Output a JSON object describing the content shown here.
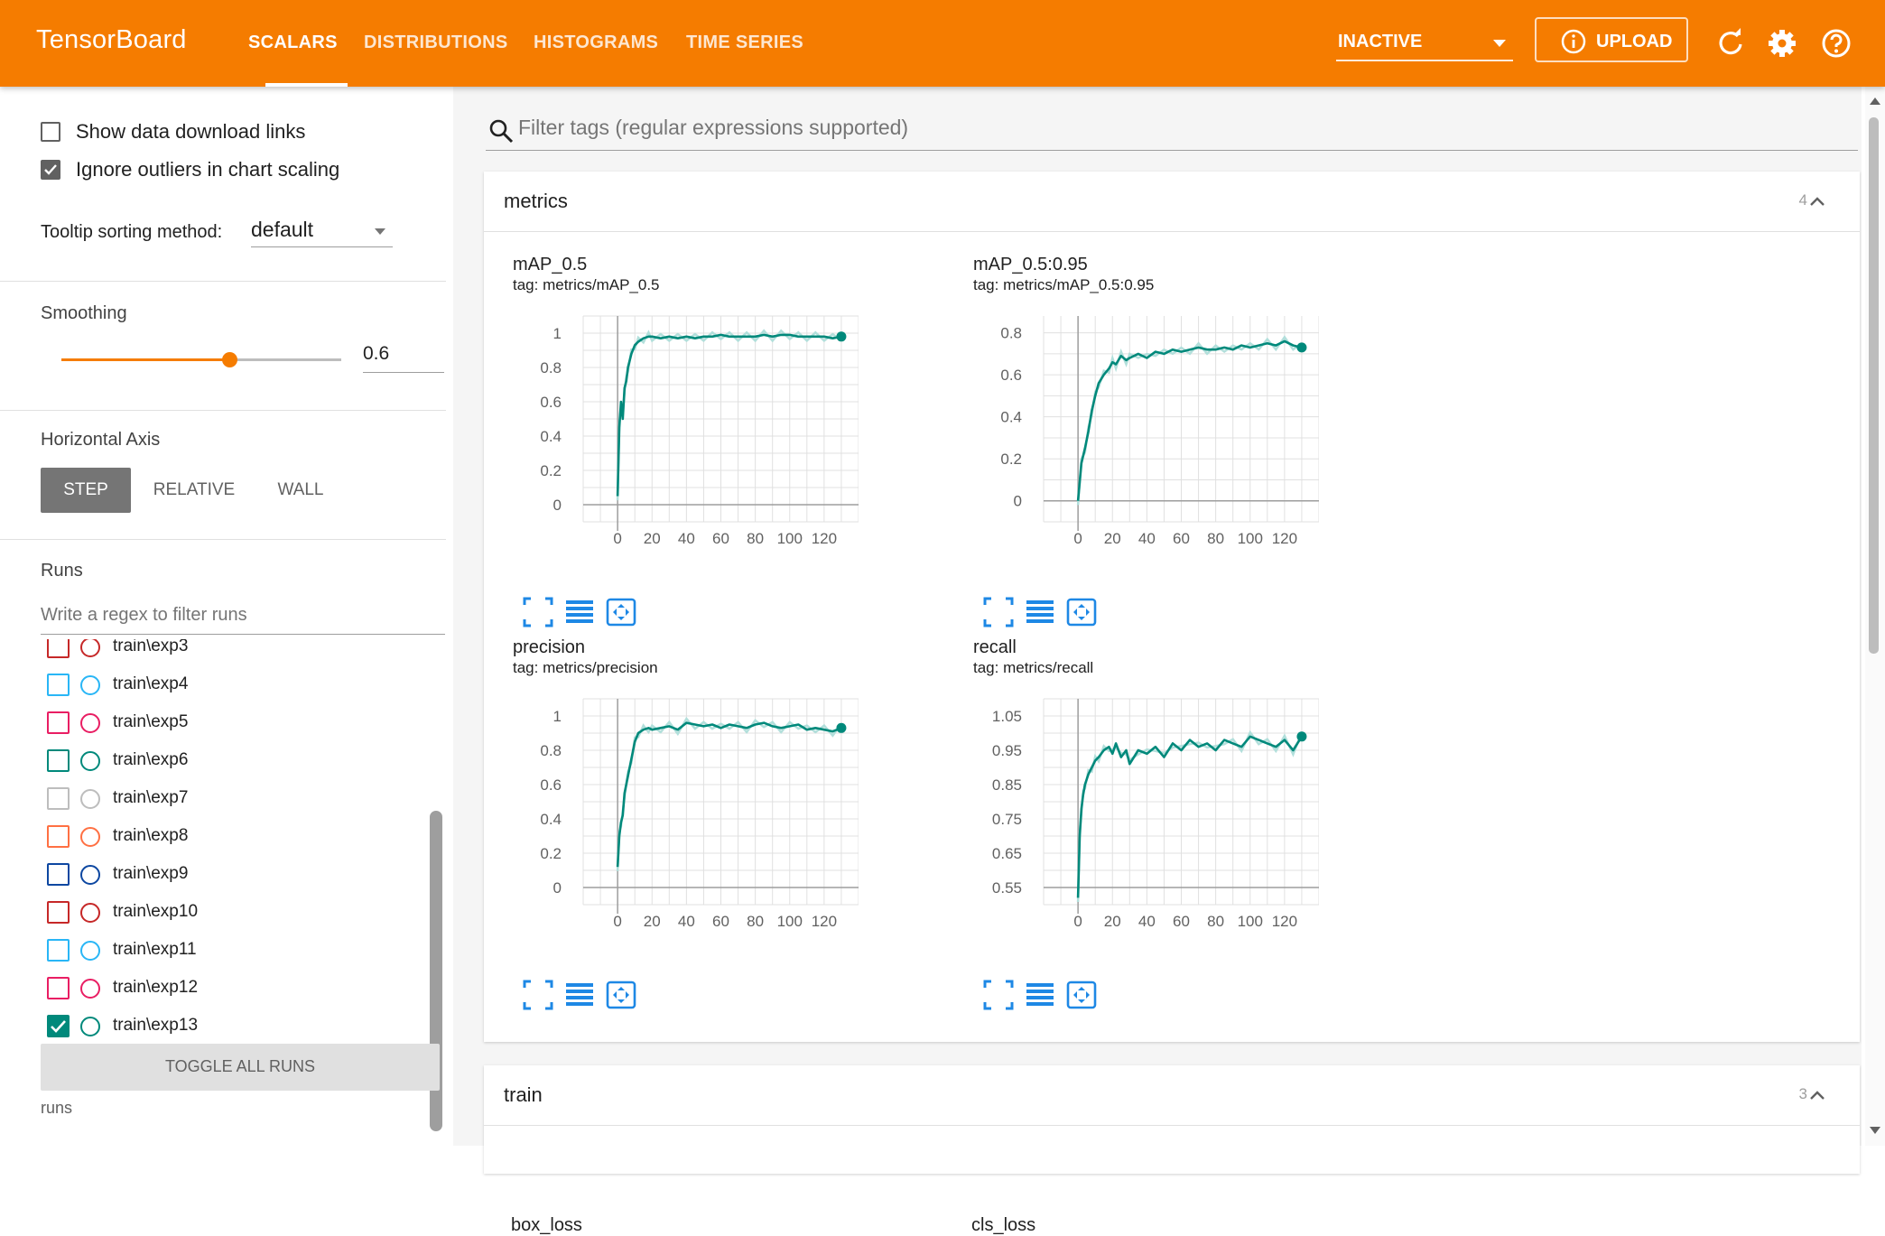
{
  "app": {
    "title": "TensorBoard"
  },
  "nav": {
    "tabs": [
      {
        "label": "SCALARS",
        "active": true
      },
      {
        "label": "DISTRIBUTIONS",
        "active": false
      },
      {
        "label": "HISTOGRAMS",
        "active": false
      },
      {
        "label": "TIME SERIES",
        "active": false
      }
    ],
    "status_select": "INACTIVE",
    "upload_label": "UPLOAD",
    "icons": [
      "refresh-icon",
      "settings-icon",
      "help-icon"
    ]
  },
  "sidebar": {
    "show_download_links": {
      "label": "Show data download links",
      "checked": false
    },
    "ignore_outliers": {
      "label": "Ignore outliers in chart scaling",
      "checked": true
    },
    "tooltip_sorting": {
      "label": "Tooltip sorting method:",
      "value": "default"
    },
    "smoothing": {
      "label": "Smoothing",
      "value": "0.6",
      "level": 0.6
    },
    "horizontal_axis": {
      "label": "Horizontal Axis",
      "options": [
        "STEP",
        "RELATIVE",
        "WALL"
      ],
      "selected": "STEP"
    },
    "runs": {
      "label": "Runs",
      "filter_placeholder": "Write a regex to filter runs",
      "items": [
        {
          "label": "train\\exp3",
          "color": "#c62828",
          "checked": false
        },
        {
          "label": "train\\exp4",
          "color": "#29b6f6",
          "checked": false
        },
        {
          "label": "train\\exp5",
          "color": "#e91e63",
          "checked": false
        },
        {
          "label": "train\\exp6",
          "color": "#00897b",
          "checked": false
        },
        {
          "label": "train\\exp7",
          "color": "#bdbdbd",
          "checked": false
        },
        {
          "label": "train\\exp8",
          "color": "#ff7043",
          "checked": false
        },
        {
          "label": "train\\exp9",
          "color": "#0d47a1",
          "checked": false
        },
        {
          "label": "train\\exp10",
          "color": "#c62828",
          "checked": false
        },
        {
          "label": "train\\exp11",
          "color": "#29b6f6",
          "checked": false
        },
        {
          "label": "train\\exp12",
          "color": "#e91e63",
          "checked": false
        },
        {
          "label": "train\\exp13",
          "color": "#00897b",
          "checked": true
        }
      ],
      "toggle_all_label": "TOGGLE ALL RUNS",
      "footer": "runs"
    }
  },
  "main": {
    "filter_placeholder": "Filter tags (regular expressions supported)",
    "sections": [
      {
        "title": "metrics",
        "count": "4"
      },
      {
        "title": "train",
        "count": "3"
      }
    ],
    "next_section_charts": [
      "box_loss",
      "cls_loss"
    ]
  },
  "colors": {
    "accent": "#f57c00",
    "series": "#00897b",
    "series_raw": "#b2dfdb"
  },
  "chart_data": [
    {
      "type": "line",
      "title": "mAP_0.5",
      "subtitle": "tag: metrics/mAP_0.5",
      "xlim": [
        -20,
        140
      ],
      "ylim": [
        -0.1,
        1.1
      ],
      "xticks": [
        "0",
        "20",
        "40",
        "60",
        "80",
        "100",
        "120"
      ],
      "yticks": [
        "0",
        "0.2",
        "0.4",
        "0.6",
        "0.8",
        "1"
      ],
      "ytick_values": [
        0,
        0.2,
        0.4,
        0.6,
        0.8,
        1
      ],
      "series": [
        {
          "x": [
            0,
            1,
            2,
            3,
            4,
            5,
            6,
            8,
            10,
            12,
            15,
            18,
            20,
            25,
            30,
            35,
            40,
            45,
            50,
            55,
            60,
            65,
            70,
            75,
            80,
            85,
            90,
            95,
            100,
            105,
            110,
            115,
            120,
            125,
            130
          ],
          "y": [
            0.05,
            0.45,
            0.6,
            0.5,
            0.68,
            0.72,
            0.8,
            0.88,
            0.93,
            0.95,
            0.97,
            0.98,
            0.98,
            0.97,
            0.98,
            0.97,
            0.98,
            0.97,
            0.98,
            0.98,
            0.99,
            0.98,
            0.98,
            0.98,
            0.98,
            0.99,
            0.98,
            0.99,
            0.99,
            0.98,
            0.98,
            0.98,
            0.98,
            0.97,
            0.98
          ]
        }
      ]
    },
    {
      "type": "line",
      "title": "mAP_0.5:0.95",
      "subtitle": "tag: metrics/mAP_0.5:0.95",
      "xlim": [
        -20,
        140
      ],
      "ylim": [
        -0.1,
        0.88
      ],
      "xticks": [
        "0",
        "20",
        "40",
        "60",
        "80",
        "100",
        "120"
      ],
      "yticks": [
        "0",
        "0.2",
        "0.4",
        "0.6",
        "0.8"
      ],
      "ytick_values": [
        0,
        0.2,
        0.4,
        0.6,
        0.8
      ],
      "series": [
        {
          "x": [
            0,
            2,
            4,
            6,
            8,
            10,
            12,
            15,
            18,
            20,
            22,
            25,
            28,
            30,
            35,
            40,
            45,
            50,
            55,
            60,
            65,
            70,
            75,
            80,
            85,
            90,
            95,
            100,
            105,
            110,
            115,
            120,
            125,
            130
          ],
          "y": [
            0.0,
            0.18,
            0.25,
            0.33,
            0.43,
            0.5,
            0.56,
            0.6,
            0.63,
            0.66,
            0.65,
            0.69,
            0.67,
            0.68,
            0.7,
            0.68,
            0.71,
            0.7,
            0.72,
            0.71,
            0.72,
            0.73,
            0.72,
            0.72,
            0.73,
            0.72,
            0.74,
            0.73,
            0.74,
            0.75,
            0.74,
            0.76,
            0.74,
            0.73
          ]
        }
      ]
    },
    {
      "type": "line",
      "title": "precision",
      "subtitle": "tag: metrics/precision",
      "xlim": [
        -20,
        140
      ],
      "ylim": [
        -0.1,
        1.1
      ],
      "xticks": [
        "0",
        "20",
        "40",
        "60",
        "80",
        "100",
        "120"
      ],
      "yticks": [
        "0",
        "0.2",
        "0.4",
        "0.6",
        "0.8",
        "1"
      ],
      "ytick_values": [
        0,
        0.2,
        0.4,
        0.6,
        0.8,
        1
      ],
      "series": [
        {
          "x": [
            0,
            1,
            2,
            3,
            4,
            6,
            8,
            10,
            12,
            15,
            18,
            20,
            25,
            30,
            35,
            40,
            45,
            50,
            55,
            60,
            65,
            70,
            75,
            80,
            85,
            90,
            95,
            100,
            105,
            110,
            115,
            120,
            125,
            130
          ],
          "y": [
            0.12,
            0.3,
            0.38,
            0.42,
            0.55,
            0.65,
            0.75,
            0.85,
            0.9,
            0.92,
            0.93,
            0.92,
            0.93,
            0.94,
            0.92,
            0.96,
            0.95,
            0.94,
            0.95,
            0.93,
            0.95,
            0.94,
            0.93,
            0.95,
            0.96,
            0.94,
            0.93,
            0.94,
            0.95,
            0.92,
            0.93,
            0.92,
            0.91,
            0.93
          ]
        }
      ]
    },
    {
      "type": "line",
      "title": "recall",
      "subtitle": "tag: metrics/recall",
      "xlim": [
        -20,
        140
      ],
      "ylim": [
        0.5,
        1.1
      ],
      "xticks": [
        "0",
        "20",
        "40",
        "60",
        "80",
        "100",
        "120"
      ],
      "yticks": [
        "0.55",
        "0.65",
        "0.75",
        "0.85",
        "0.95",
        "1.05"
      ],
      "ytick_values": [
        0.55,
        0.65,
        0.75,
        0.85,
        0.95,
        1.05
      ],
      "series": [
        {
          "x": [
            0,
            1,
            2,
            3,
            4,
            6,
            8,
            10,
            12,
            15,
            18,
            20,
            22,
            25,
            28,
            30,
            35,
            40,
            45,
            50,
            55,
            60,
            65,
            70,
            75,
            80,
            85,
            90,
            95,
            100,
            105,
            110,
            115,
            120,
            125,
            130
          ],
          "y": [
            0.52,
            0.7,
            0.78,
            0.82,
            0.85,
            0.88,
            0.9,
            0.92,
            0.93,
            0.95,
            0.96,
            0.94,
            0.97,
            0.93,
            0.95,
            0.91,
            0.95,
            0.94,
            0.96,
            0.93,
            0.97,
            0.95,
            0.98,
            0.96,
            0.97,
            0.95,
            0.98,
            0.97,
            0.96,
            0.99,
            0.98,
            0.97,
            0.96,
            0.98,
            0.95,
            0.99
          ]
        }
      ]
    }
  ]
}
